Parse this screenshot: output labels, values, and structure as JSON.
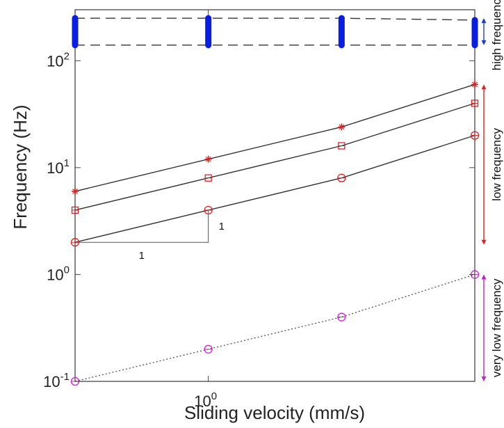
{
  "chart_data": {
    "type": "line",
    "xlabel": "Sliding velocity (mm/s)",
    "ylabel": "Frequency (Hz)",
    "xscale": "log",
    "yscale": "log",
    "xlim": [
      0.5,
      4.0
    ],
    "ylim": [
      0.1,
      300
    ],
    "x_ticks": [
      {
        "base": "10",
        "exp": "0",
        "value": 1
      }
    ],
    "y_ticks": [
      {
        "base": "10",
        "exp": "-1",
        "value": 0.1
      },
      {
        "base": "10",
        "exp": "0",
        "value": 1
      },
      {
        "base": "10",
        "exp": "1",
        "value": 10
      },
      {
        "base": "10",
        "exp": "2",
        "value": 100
      }
    ],
    "x": [
      0.5,
      1,
      2,
      4
    ],
    "series": [
      {
        "group": "high",
        "style": "dashed",
        "color": "#333333",
        "marker": "bar",
        "values": [
          250,
          250,
          250,
          240
        ]
      },
      {
        "group": "high",
        "style": "dashed",
        "color": "#333333",
        "marker": "bar",
        "values": [
          140,
          140,
          140,
          140
        ]
      },
      {
        "group": "low",
        "style": "solid",
        "color": "#333333",
        "marker": "star",
        "markerColor": "#e02020",
        "values": [
          6,
          12,
          24,
          60
        ]
      },
      {
        "group": "low",
        "style": "solid",
        "color": "#333333",
        "marker": "square",
        "markerColor": "#e02020",
        "values": [
          4,
          8,
          16,
          40
        ]
      },
      {
        "group": "low",
        "style": "solid",
        "color": "#333333",
        "marker": "circle",
        "markerColor": "#e02020",
        "values": [
          2,
          4,
          8,
          20
        ]
      },
      {
        "group": "very-low",
        "style": "dotted",
        "color": "#444444",
        "marker": "circle",
        "markerColor": "#d020d0",
        "values": [
          0.1,
          0.2,
          0.4,
          1.0
        ]
      }
    ],
    "bands": [
      {
        "label": "high frequency",
        "color": "#1f3fbf",
        "range": [
          140,
          250
        ]
      },
      {
        "label": "low frequency",
        "color": "#e02020",
        "range": [
          1.9,
          60
        ]
      },
      {
        "label": "very low frequency",
        "color": "#c020d0",
        "range": [
          0.1,
          1.0
        ]
      }
    ],
    "slope_triangle": {
      "x": [
        0.5,
        1
      ],
      "y": [
        2,
        4
      ],
      "run_label": "1",
      "rise_label": "1"
    },
    "high_band_bar_color": "#0a1ee0",
    "grid": false
  }
}
